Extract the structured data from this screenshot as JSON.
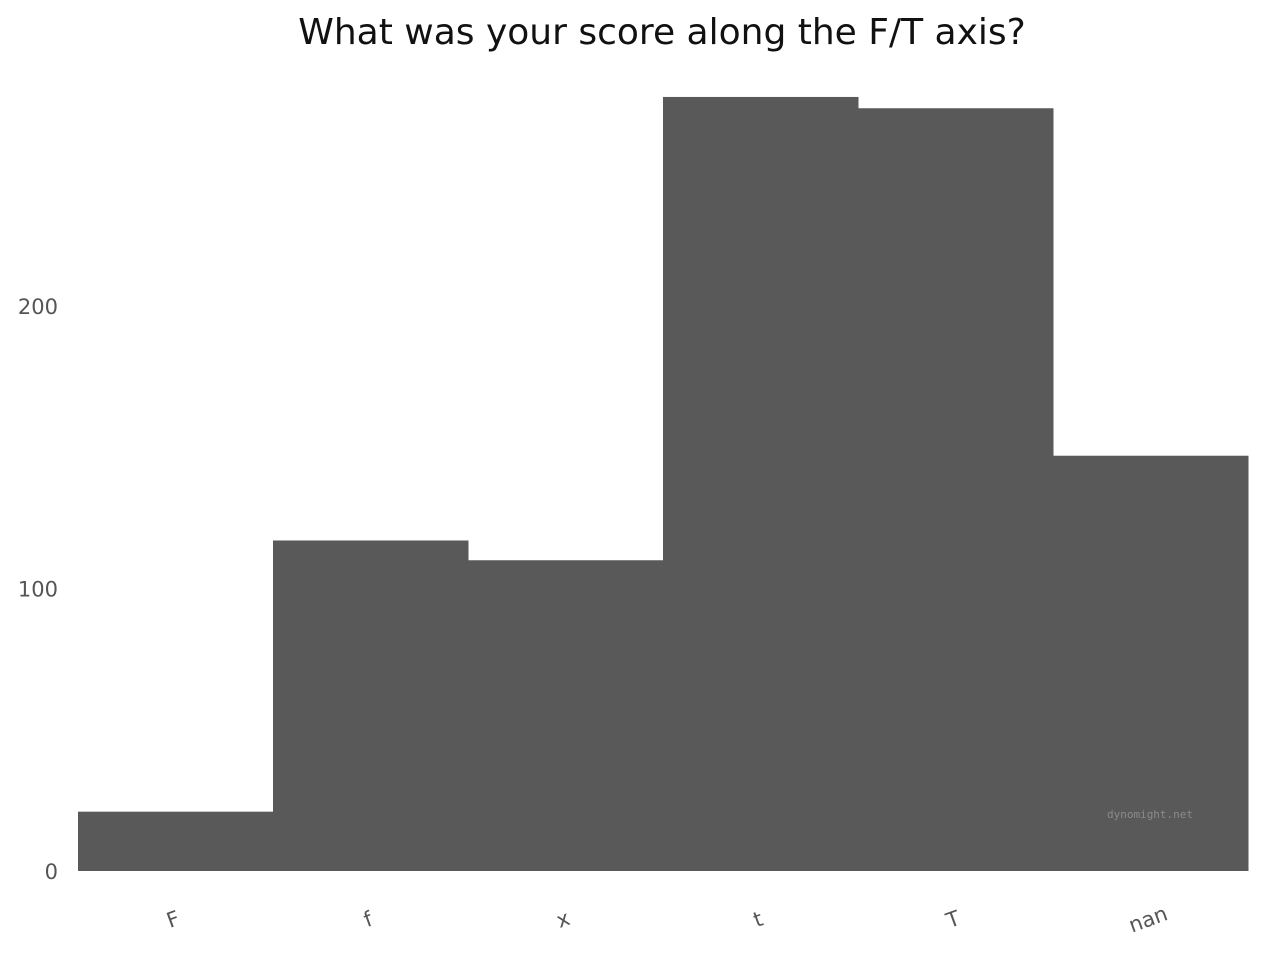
{
  "chart_data": {
    "type": "bar",
    "title": "What was your score along the F/T axis?",
    "categories": [
      "F",
      "f",
      "x",
      "t",
      "T",
      "nan"
    ],
    "values": [
      21,
      117,
      110,
      274,
      270,
      147
    ],
    "ylim": [
      0,
      280
    ],
    "yticks": [
      0,
      100,
      200
    ],
    "grid": false,
    "xlabel": "",
    "ylabel": "",
    "bar_color": "#595959",
    "watermark": "dynomight.net"
  }
}
